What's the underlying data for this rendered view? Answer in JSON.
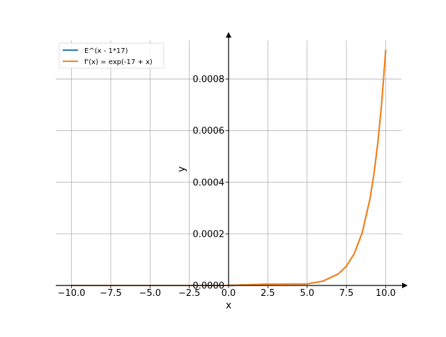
{
  "chart_data": {
    "type": "line",
    "xlabel": "x",
    "ylabel": "y",
    "xlim": [
      -11.0,
      11.0
    ],
    "ylim": [
      0.0,
      0.00095
    ],
    "x_ticks": [
      -10.0,
      -7.5,
      -5.0,
      -2.5,
      0.0,
      2.5,
      5.0,
      7.5,
      10.0
    ],
    "x_tick_labels": [
      "−10.0",
      "−7.5",
      "−5.0",
      "−2.5",
      "0.0",
      "2.5",
      "5.0",
      "7.5",
      "10.0"
    ],
    "y_ticks": [
      0.0,
      0.0002,
      0.0004,
      0.0006,
      0.0008
    ],
    "y_tick_labels": [
      "0.0000",
      "0.0002",
      "0.0004",
      "0.0006",
      "0.0008"
    ],
    "grid": true,
    "legend_placement": "top-left",
    "series": [
      {
        "name": "E^(x - 1*17)",
        "color": "#1f77b4",
        "x": [
          -10,
          -7.5,
          -5,
          -2.5,
          0,
          2.5,
          5,
          6,
          7,
          7.5,
          8,
          8.5,
          9,
          9.25,
          9.5,
          9.75,
          10
        ],
        "y": [
          0.0,
          0.0,
          0.0,
          1e-07,
          4e-07,
          5.1e-06,
          6.1e-06,
          1.67e-05,
          4.54e-05,
          7.49e-05,
          0.0001234,
          0.0002035,
          0.0003355,
          0.0004307,
          0.0005531,
          0.0007102,
          0.0009119
        ]
      },
      {
        "name": "f'(x) = exp(-17 + x)",
        "color": "#ff7f0e",
        "x": [
          -10,
          -7.5,
          -5,
          -2.5,
          0,
          2.5,
          5,
          6,
          7,
          7.5,
          8,
          8.5,
          9,
          9.25,
          9.5,
          9.75,
          10
        ],
        "y": [
          0.0,
          0.0,
          0.0,
          1e-07,
          4e-07,
          5.1e-06,
          6.1e-06,
          1.67e-05,
          4.54e-05,
          7.49e-05,
          0.0001234,
          0.0002035,
          0.0003355,
          0.0004307,
          0.0005531,
          0.0007102,
          0.0009119
        ]
      }
    ]
  }
}
